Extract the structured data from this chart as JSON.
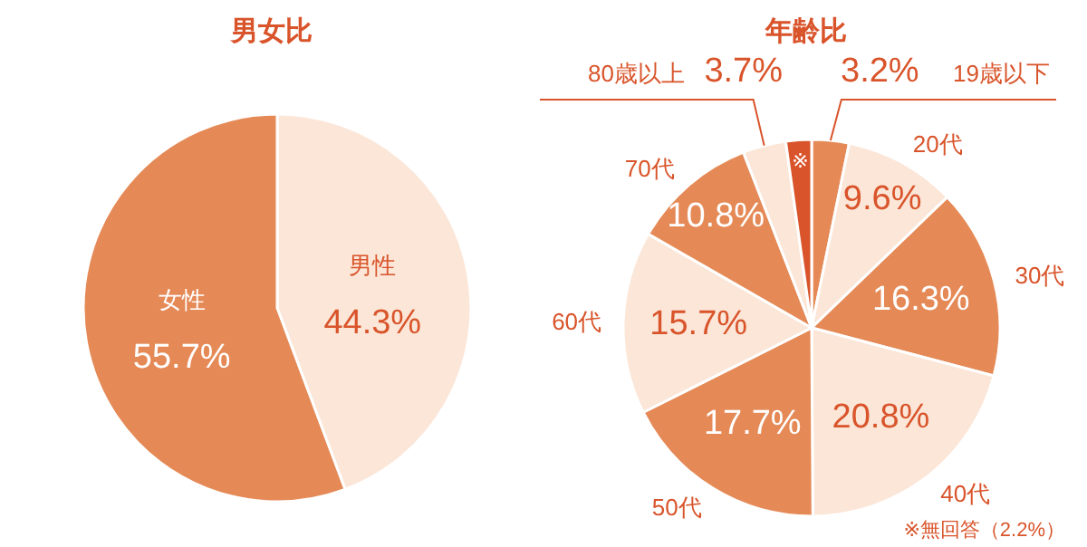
{
  "chart_data": [
    {
      "type": "pie",
      "title": "男女比",
      "categories": [
        "男性",
        "女性"
      ],
      "values": [
        44.3,
        55.7
      ],
      "colors": [
        "#fbe6d8",
        "#e58a57"
      ],
      "value_labels": [
        "44.3%",
        "55.7%"
      ]
    },
    {
      "type": "pie",
      "title": "年齢比",
      "categories": [
        "19歳以下",
        "20代",
        "30代",
        "40代",
        "50代",
        "60代",
        "70代",
        "80歳以上",
        "※"
      ],
      "values": [
        3.2,
        9.6,
        16.3,
        20.8,
        17.7,
        15.7,
        10.8,
        3.7,
        2.2
      ],
      "colors": [
        "#e58a57",
        "#fbe6d8",
        "#e58a57",
        "#fbe6d8",
        "#e58a57",
        "#fbe6d8",
        "#e58a57",
        "#fbe6d8",
        "#d9542a"
      ],
      "value_labels": [
        "3.2%",
        "9.6%",
        "16.3%",
        "20.8%",
        "17.7%",
        "15.7%",
        "10.8%",
        "3.7%",
        null
      ],
      "annotations": [
        "※無回答（2.2%）"
      ]
    }
  ]
}
